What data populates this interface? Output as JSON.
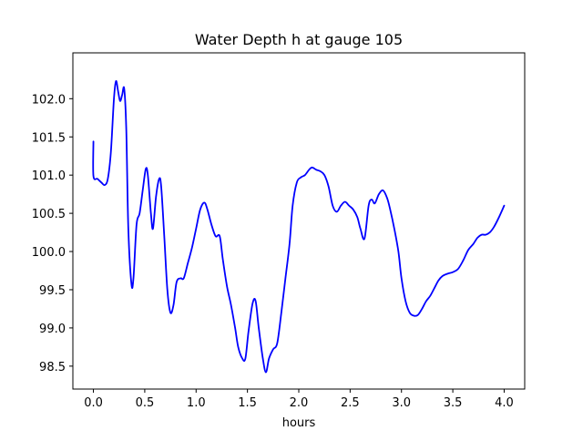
{
  "chart_data": {
    "type": "line",
    "title": "Water Depth h at gauge 105",
    "xlabel": "hours",
    "ylabel": "",
    "xlim": [
      -0.2,
      4.2
    ],
    "ylim": [
      98.2,
      102.6
    ],
    "grid": false,
    "legend": "none",
    "xticks": [
      {
        "value": 0.0,
        "label": "0.0"
      },
      {
        "value": 0.5,
        "label": "0.5"
      },
      {
        "value": 1.0,
        "label": "1.0"
      },
      {
        "value": 1.5,
        "label": "1.5"
      },
      {
        "value": 2.0,
        "label": "2.0"
      },
      {
        "value": 2.5,
        "label": "2.5"
      },
      {
        "value": 3.0,
        "label": "3.0"
      },
      {
        "value": 3.5,
        "label": "3.5"
      },
      {
        "value": 4.0,
        "label": "4.0"
      }
    ],
    "yticks": [
      {
        "value": 98.5,
        "label": "98.5"
      },
      {
        "value": 99.0,
        "label": "99.0"
      },
      {
        "value": 99.5,
        "label": "99.5"
      },
      {
        "value": 100.0,
        "label": "100.0"
      },
      {
        "value": 100.5,
        "label": "100.5"
      },
      {
        "value": 101.0,
        "label": "101.0"
      },
      {
        "value": 101.5,
        "label": "101.5"
      },
      {
        "value": 102.0,
        "label": "102.0"
      }
    ],
    "series": [
      {
        "color": "#0000ff",
        "points": [
          [
            0.0,
            101.44
          ],
          [
            0.0,
            100.99
          ],
          [
            0.04,
            100.95
          ],
          [
            0.08,
            100.9
          ],
          [
            0.11,
            100.87
          ],
          [
            0.14,
            100.95
          ],
          [
            0.17,
            101.3
          ],
          [
            0.2,
            102.0
          ],
          [
            0.22,
            102.23
          ],
          [
            0.24,
            102.1
          ],
          [
            0.26,
            101.97
          ],
          [
            0.28,
            102.05
          ],
          [
            0.3,
            102.13
          ],
          [
            0.32,
            101.6
          ],
          [
            0.34,
            100.3
          ],
          [
            0.37,
            99.58
          ],
          [
            0.39,
            99.65
          ],
          [
            0.42,
            100.35
          ],
          [
            0.45,
            100.5
          ],
          [
            0.48,
            100.8
          ],
          [
            0.51,
            101.08
          ],
          [
            0.53,
            101.0
          ],
          [
            0.56,
            100.5
          ],
          [
            0.58,
            100.3
          ],
          [
            0.61,
            100.72
          ],
          [
            0.64,
            100.95
          ],
          [
            0.66,
            100.85
          ],
          [
            0.69,
            100.2
          ],
          [
            0.72,
            99.5
          ],
          [
            0.75,
            99.2
          ],
          [
            0.78,
            99.3
          ],
          [
            0.81,
            99.6
          ],
          [
            0.85,
            99.65
          ],
          [
            0.88,
            99.65
          ],
          [
            0.92,
            99.85
          ],
          [
            0.96,
            100.05
          ],
          [
            1.0,
            100.3
          ],
          [
            1.04,
            100.55
          ],
          [
            1.08,
            100.64
          ],
          [
            1.11,
            100.55
          ],
          [
            1.15,
            100.35
          ],
          [
            1.19,
            100.2
          ],
          [
            1.23,
            100.2
          ],
          [
            1.26,
            99.9
          ],
          [
            1.3,
            99.55
          ],
          [
            1.34,
            99.3
          ],
          [
            1.38,
            99.0
          ],
          [
            1.41,
            98.75
          ],
          [
            1.45,
            98.6
          ],
          [
            1.48,
            98.6
          ],
          [
            1.51,
            98.95
          ],
          [
            1.55,
            99.32
          ],
          [
            1.58,
            99.35
          ],
          [
            1.61,
            99.0
          ],
          [
            1.65,
            98.6
          ],
          [
            1.68,
            98.42
          ],
          [
            1.71,
            98.6
          ],
          [
            1.75,
            98.72
          ],
          [
            1.79,
            98.8
          ],
          [
            1.83,
            99.2
          ],
          [
            1.87,
            99.65
          ],
          [
            1.91,
            100.1
          ],
          [
            1.94,
            100.6
          ],
          [
            1.98,
            100.9
          ],
          [
            2.02,
            100.97
          ],
          [
            2.06,
            101.0
          ],
          [
            2.1,
            101.07
          ],
          [
            2.13,
            101.1
          ],
          [
            2.17,
            101.07
          ],
          [
            2.21,
            101.05
          ],
          [
            2.25,
            101.0
          ],
          [
            2.29,
            100.85
          ],
          [
            2.33,
            100.6
          ],
          [
            2.37,
            100.52
          ],
          [
            2.41,
            100.6
          ],
          [
            2.45,
            100.65
          ],
          [
            2.49,
            100.6
          ],
          [
            2.53,
            100.55
          ],
          [
            2.57,
            100.45
          ],
          [
            2.6,
            100.3
          ],
          [
            2.64,
            100.17
          ],
          [
            2.68,
            100.6
          ],
          [
            2.71,
            100.68
          ],
          [
            2.74,
            100.63
          ],
          [
            2.78,
            100.75
          ],
          [
            2.82,
            100.8
          ],
          [
            2.86,
            100.7
          ],
          [
            2.89,
            100.55
          ],
          [
            2.93,
            100.3
          ],
          [
            2.97,
            100.0
          ],
          [
            3.0,
            99.65
          ],
          [
            3.04,
            99.35
          ],
          [
            3.08,
            99.2
          ],
          [
            3.12,
            99.16
          ],
          [
            3.16,
            99.17
          ],
          [
            3.2,
            99.25
          ],
          [
            3.24,
            99.35
          ],
          [
            3.28,
            99.42
          ],
          [
            3.32,
            99.52
          ],
          [
            3.36,
            99.62
          ],
          [
            3.4,
            99.68
          ],
          [
            3.45,
            99.71
          ],
          [
            3.5,
            99.73
          ],
          [
            3.55,
            99.77
          ],
          [
            3.6,
            99.88
          ],
          [
            3.65,
            100.02
          ],
          [
            3.7,
            100.1
          ],
          [
            3.74,
            100.18
          ],
          [
            3.78,
            100.22
          ],
          [
            3.82,
            100.22
          ],
          [
            3.86,
            100.25
          ],
          [
            3.9,
            100.32
          ],
          [
            3.95,
            100.45
          ],
          [
            4.0,
            100.6
          ]
        ]
      }
    ]
  }
}
